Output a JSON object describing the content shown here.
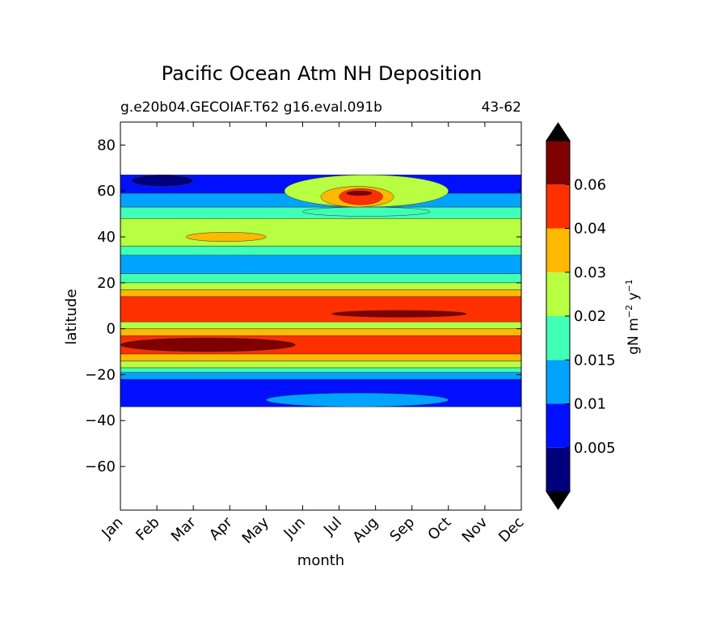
{
  "chart_data": {
    "type": "contour",
    "title": "Pacific Ocean Atm NH Deposition",
    "subtitle_left": "g.e20b04.GECOIAF.T62 g16.eval.091b",
    "subtitle_right": "43-62",
    "xlabel": "month",
    "ylabel": "latitude",
    "x_ticks": [
      "Jan",
      "Feb",
      "Mar",
      "Apr",
      "May",
      "Jun",
      "Jul",
      "Aug",
      "Sep",
      "Oct",
      "Nov",
      "Dec"
    ],
    "y_ticks": [
      80,
      60,
      40,
      20,
      0,
      -20,
      -40,
      -60
    ],
    "y_tick_labels": [
      "80",
      "60",
      "40",
      "20",
      "0",
      "−20",
      "−40",
      "−60"
    ],
    "ylim": [
      -79,
      90
    ],
    "data_lat_range": [
      -34,
      67
    ],
    "colorbar": {
      "label": "gN m⁻² y⁻¹",
      "label_text": "gN m",
      "label_sup1": "−2",
      "label_mid": " y",
      "label_sup2": "−1",
      "tick_labels": [
        "0.005",
        "0.01",
        "0.015",
        "0.02",
        "0.03",
        "0.04",
        "0.06"
      ],
      "colors": [
        "#00007f",
        "#0010ff",
        "#00a4ff",
        "#40ffb7",
        "#b7ff40",
        "#ffb900",
        "#ff3000",
        "#7f0000"
      ],
      "extend": "both"
    },
    "bands": [
      {
        "lat_min": -34,
        "lat_max": -22,
        "level": 1
      },
      {
        "lat_min": -22,
        "lat_max": -19,
        "level": 2
      },
      {
        "lat_min": -19,
        "lat_max": -17,
        "level": 3
      },
      {
        "lat_min": -17,
        "lat_max": -14,
        "level": 4
      },
      {
        "lat_min": -14,
        "lat_max": -11,
        "level": 5
      },
      {
        "lat_min": -11,
        "lat_max": -3,
        "level": 6
      },
      {
        "lat_min": -3,
        "lat_max": 0,
        "level": 5
      },
      {
        "lat_min": 0,
        "lat_max": 3,
        "level": 4
      },
      {
        "lat_min": 3,
        "lat_max": 14,
        "level": 6
      },
      {
        "lat_min": 14,
        "lat_max": 17,
        "level": 5
      },
      {
        "lat_min": 17,
        "lat_max": 20,
        "level": 4
      },
      {
        "lat_min": 20,
        "lat_max": 24,
        "level": 3
      },
      {
        "lat_min": 24,
        "lat_max": 32,
        "level": 2
      },
      {
        "lat_min": 32,
        "lat_max": 36,
        "level": 3
      },
      {
        "lat_min": 36,
        "lat_max": 48,
        "level": 4
      },
      {
        "lat_min": 48,
        "lat_max": 53,
        "level": 3
      },
      {
        "lat_min": 53,
        "lat_max": 59,
        "level": 2
      },
      {
        "lat_min": 59,
        "lat_max": 67,
        "level": 1
      }
    ],
    "features": [
      {
        "x0": 0,
        "x1": 4.8,
        "lat_min": -10,
        "lat_max": -4,
        "level": 7
      },
      {
        "x0": 5.8,
        "x1": 9.5,
        "lat_min": 5,
        "lat_max": 8,
        "level": 7
      },
      {
        "x0": 4.5,
        "x1": 9,
        "lat_min": 53,
        "lat_max": 67,
        "level": 4
      },
      {
        "x0": 5,
        "x1": 8.5,
        "lat_min": 49,
        "lat_max": 53,
        "level": 3
      },
      {
        "x0": 5.5,
        "x1": 7.5,
        "lat_min": 53,
        "lat_max": 62,
        "level": 5
      },
      {
        "x0": 6,
        "x1": 7.2,
        "lat_min": 54,
        "lat_max": 61,
        "level": 6
      },
      {
        "x0": 6.2,
        "x1": 6.9,
        "lat_min": 58,
        "lat_max": 60,
        "level": 7
      },
      {
        "x0": 1.8,
        "x1": 4,
        "lat_min": 38,
        "lat_max": 42,
        "level": 5
      },
      {
        "x0": 0.3,
        "x1": 2,
        "lat_min": 62,
        "lat_max": 67,
        "level": 0
      },
      {
        "x0": 4,
        "x1": 9,
        "lat_min": -28,
        "lat_max": -34,
        "level": 2
      }
    ]
  }
}
